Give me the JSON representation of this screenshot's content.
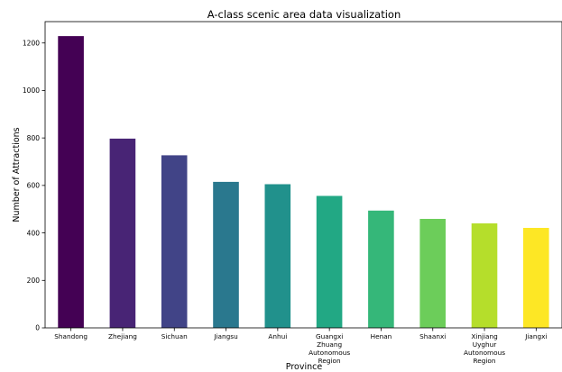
{
  "chart_data": {
    "type": "bar",
    "title": "A-class scenic area data visualization",
    "xlabel": "Province",
    "ylabel": "Number of Attractions",
    "categories": [
      [
        "Shandong"
      ],
      [
        "Zhejiang"
      ],
      [
        "Sichuan"
      ],
      [
        "Jiangsu"
      ],
      [
        "Anhui"
      ],
      [
        "Guangxi",
        "Zhuang",
        "Autonomous",
        "Region"
      ],
      [
        "Henan"
      ],
      [
        "Shaanxi"
      ],
      [
        "Xinjiang",
        "Uyghur",
        "Autonomous",
        "Region"
      ],
      [
        "Jiangxi"
      ]
    ],
    "values": [
      1229,
      797,
      727,
      615,
      605,
      556,
      494,
      459,
      440,
      421
    ],
    "colors": [
      "#440154",
      "#482475",
      "#414487",
      "#2a788e",
      "#21918c",
      "#22a884",
      "#35b779",
      "#6ccd5a",
      "#b5de2b",
      "#fde725"
    ],
    "ylim": [
      0,
      1290
    ],
    "yticks": [
      0,
      200,
      400,
      600,
      800,
      1000,
      1200
    ],
    "grid": false,
    "legend": "none"
  }
}
